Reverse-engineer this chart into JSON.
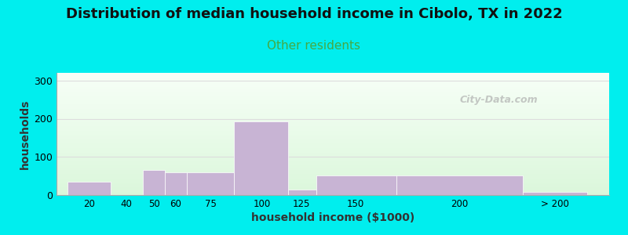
{
  "title": "Distribution of median household income in Cibolo, TX in 2022",
  "subtitle": "Other residents",
  "xlabel": "household income ($1000)",
  "ylabel": "households",
  "title_fontsize": 13,
  "subtitle_fontsize": 11,
  "subtitle_color": "#44aa44",
  "bar_color": "#c8b4d4",
  "bar_edgecolor": "#ffffff",
  "background_color": "#00eeee",
  "ylim": [
    0,
    320
  ],
  "yticks": [
    0,
    100,
    200,
    300
  ],
  "watermark": "City-Data.com",
  "values": [
    35,
    0,
    65,
    60,
    60,
    193,
    14,
    52,
    52,
    8
  ],
  "bar_lefts": [
    10,
    30,
    45,
    55,
    65,
    87,
    112,
    125,
    162,
    220
  ],
  "bar_rights": [
    30,
    45,
    55,
    65,
    87,
    112,
    125,
    162,
    220,
    250
  ],
  "xtick_labels": [
    "20",
    "40",
    "50",
    "60",
    "75",
    "100",
    "125",
    "150",
    "200",
    "> 200"
  ],
  "xtick_positions": [
    20,
    37,
    50,
    60,
    76,
    100,
    118,
    143,
    191,
    235
  ],
  "xlim": [
    5,
    260
  ],
  "grid_color": "#dddddd",
  "plot_bg_color_top": "#f5fff5",
  "plot_bg_color_bottom": "#e0f5e0"
}
